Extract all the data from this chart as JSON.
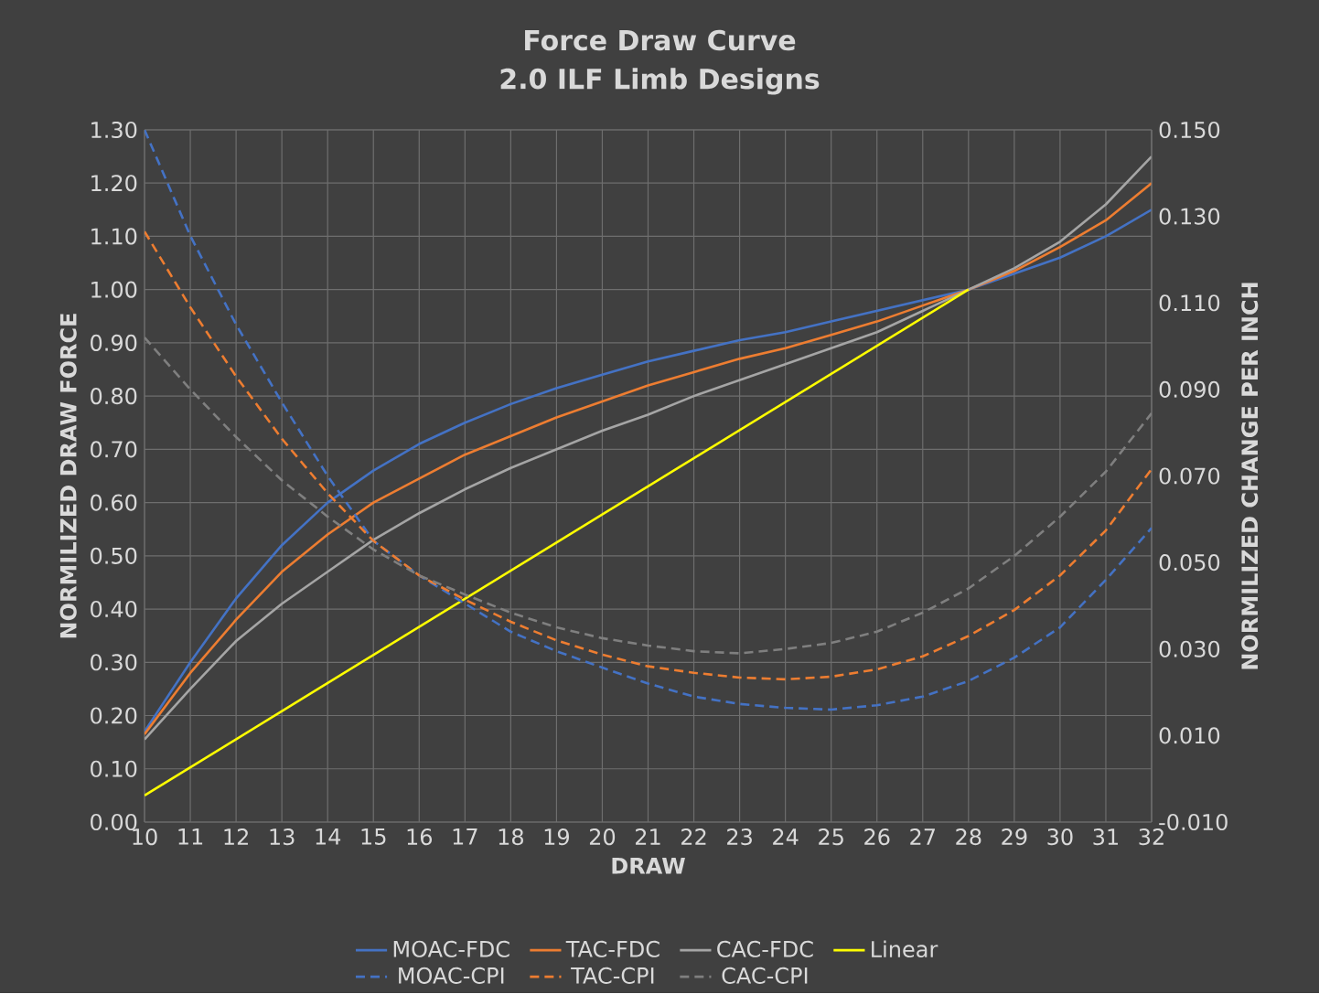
{
  "chart_data": {
    "type": "line",
    "title": "Force Draw Curve",
    "subtitle": "2.0 ILF Limb Designs",
    "xlabel": "DRAW",
    "ylabel": "NORMILIZED DRAW FORCE",
    "y2label": "NORMILIZED CHANGE PER INCH",
    "x": [
      10,
      11,
      12,
      13,
      14,
      15,
      16,
      17,
      18,
      19,
      20,
      21,
      22,
      23,
      24,
      25,
      26,
      27,
      28,
      29,
      30,
      31,
      32
    ],
    "xlim": [
      10,
      32
    ],
    "xticks": [
      10,
      11,
      12,
      13,
      14,
      15,
      16,
      17,
      18,
      19,
      20,
      21,
      22,
      23,
      24,
      25,
      26,
      27,
      28,
      29,
      30,
      31,
      32
    ],
    "ylim": [
      0,
      1.3
    ],
    "yticks": [
      {
        "value": 0,
        "label": "0.00"
      },
      {
        "value": 0.1,
        "label": "0.10"
      },
      {
        "value": 0.2,
        "label": "0.20"
      },
      {
        "value": 0.3,
        "label": "0.30"
      },
      {
        "value": 0.4,
        "label": "0.40"
      },
      {
        "value": 0.5,
        "label": "0.50"
      },
      {
        "value": 0.6,
        "label": "0.60"
      },
      {
        "value": 0.7,
        "label": "0.70"
      },
      {
        "value": 0.8,
        "label": "0.80"
      },
      {
        "value": 0.9,
        "label": "0.90"
      },
      {
        "value": 1.0,
        "label": "1.00"
      },
      {
        "value": 1.1,
        "label": "1.10"
      },
      {
        "value": 1.2,
        "label": "1.20"
      },
      {
        "value": 1.3,
        "label": "1.30"
      }
    ],
    "y2lim": [
      -0.01,
      0.15
    ],
    "y2ticks": [
      {
        "value": -0.01,
        "label": "-0.010"
      },
      {
        "value": 0.01,
        "label": "0.010"
      },
      {
        "value": 0.03,
        "label": "0.030"
      },
      {
        "value": 0.05,
        "label": "0.050"
      },
      {
        "value": 0.07,
        "label": "0.070"
      },
      {
        "value": 0.09,
        "label": "0.090"
      },
      {
        "value": 0.11,
        "label": "0.110"
      },
      {
        "value": 0.13,
        "label": "0.130"
      },
      {
        "value": 0.15,
        "label": "0.150"
      }
    ],
    "grid": true,
    "legend": "bottom",
    "series": [
      {
        "name": "MOAC-FDC",
        "color": "#4472c4",
        "line_style": "solid",
        "values": [
          0.17,
          0.3,
          0.42,
          0.52,
          0.6,
          0.66,
          0.71,
          0.75,
          0.785,
          0.815,
          0.84,
          0.865,
          0.885,
          0.905,
          0.92,
          0.94,
          0.96,
          0.98,
          1.0,
          1.03,
          1.06,
          1.1,
          1.15
        ]
      },
      {
        "name": "TAC-FDC",
        "color": "#ed7d31",
        "line_style": "solid",
        "values": [
          0.165,
          0.28,
          0.38,
          0.47,
          0.54,
          0.6,
          0.645,
          0.69,
          0.725,
          0.76,
          0.79,
          0.82,
          0.845,
          0.87,
          0.89,
          0.915,
          0.94,
          0.97,
          1.0,
          1.035,
          1.08,
          1.13,
          1.2
        ]
      },
      {
        "name": "CAC-FDC",
        "color": "#a5a5a5",
        "line_style": "solid",
        "values": [
          0.155,
          0.25,
          0.34,
          0.41,
          0.47,
          0.53,
          0.58,
          0.625,
          0.665,
          0.7,
          0.735,
          0.765,
          0.8,
          0.83,
          0.86,
          0.89,
          0.92,
          0.96,
          1.0,
          1.04,
          1.09,
          1.16,
          1.25
        ]
      },
      {
        "name": "Linear",
        "color": "#ffff00",
        "line_style": "solid",
        "x": [
          10,
          28
        ],
        "values": [
          0.05,
          1.0
        ]
      },
      {
        "name": "MOAC-CPI",
        "color": "#4472c4",
        "line_style": "dashed",
        "axis": "y2",
        "values": [
          0.15,
          0.1255,
          0.105,
          0.087,
          0.07,
          0.055,
          0.047,
          0.0405,
          0.034,
          0.0295,
          0.0257,
          0.022,
          0.019,
          0.0173,
          0.0164,
          0.016,
          0.017,
          0.019,
          0.0226,
          0.028,
          0.035,
          0.046,
          0.058
        ]
      },
      {
        "name": "TAC-CPI",
        "color": "#ed7d31",
        "line_style": "dashed",
        "axis": "y2",
        "values": [
          0.1265,
          0.109,
          0.093,
          0.0786,
          0.066,
          0.055,
          0.047,
          0.0414,
          0.0363,
          0.032,
          0.0287,
          0.026,
          0.0245,
          0.0234,
          0.023,
          0.0236,
          0.0253,
          0.0283,
          0.033,
          0.039,
          0.047,
          0.0574,
          0.0716
        ]
      },
      {
        "name": "CAC-CPI",
        "color": "#7f7f7f",
        "line_style": "dashed",
        "axis": "y2",
        "values": [
          0.102,
          0.09,
          0.079,
          0.069,
          0.0606,
          0.053,
          0.047,
          0.0426,
          0.0384,
          0.035,
          0.0325,
          0.0308,
          0.0295,
          0.029,
          0.03,
          0.0314,
          0.034,
          0.0384,
          0.044,
          0.0515,
          0.0606,
          0.071,
          0.0845
        ]
      }
    ]
  }
}
